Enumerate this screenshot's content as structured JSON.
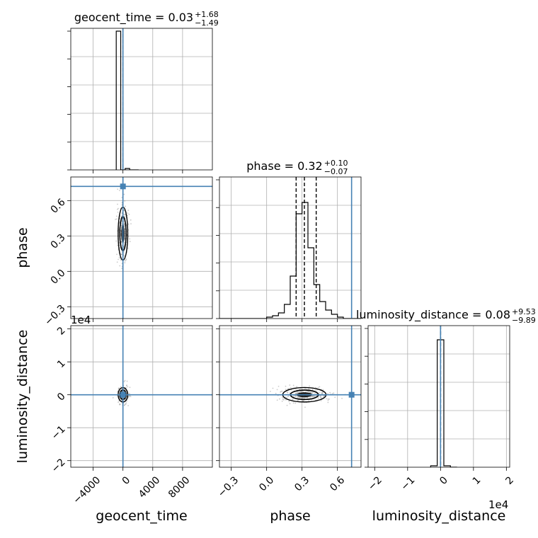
{
  "chart_data": {
    "type": "corner",
    "parameters": [
      {
        "name": "geocent_time",
        "axis_label": "geocent_time",
        "title": {
          "base": "geocent_time = 0.03",
          "plus": "+1.68",
          "minus": "−1.49"
        },
        "range": [
          -7000,
          12000
        ],
        "ticks": [
          {
            "value": -4000,
            "label": "−4000"
          },
          {
            "value": 0,
            "label": "0"
          },
          {
            "value": 4000,
            "label": "4000"
          },
          {
            "value": 8000,
            "label": "8000"
          }
        ],
        "offset_text": "",
        "quantiles": [
          -1.46,
          0.03,
          1.71
        ],
        "injection": 0,
        "hist": {
          "bins": [
            -900,
            -300,
            300,
            900,
            1500,
            2100
          ],
          "counts": [
            0.98,
            0.0,
            0.01,
            0.0,
            0.0
          ]
        },
        "ymax": 1.0
      },
      {
        "name": "phase",
        "axis_label": "phase",
        "title": {
          "base": "phase = 0.32",
          "plus": "+0.10",
          "minus": "−0.07"
        },
        "range": [
          -0.4,
          0.8
        ],
        "ticks": [
          {
            "value": -0.3,
            "label": "−0.3"
          },
          {
            "value": 0.0,
            "label": "0.0"
          },
          {
            "value": 0.3,
            "label": "0.3"
          },
          {
            "value": 0.6,
            "label": "0.6"
          }
        ],
        "offset_text": "",
        "quantiles": [
          0.25,
          0.32,
          0.42
        ],
        "injection": 0.72,
        "hist": {
          "bins": [
            -0.4,
            -0.35,
            -0.3,
            -0.25,
            -0.2,
            -0.15,
            -0.1,
            -0.05,
            0.0,
            0.05,
            0.1,
            0.15,
            0.2,
            0.25,
            0.3,
            0.35,
            0.4,
            0.45,
            0.5,
            0.55,
            0.6,
            0.65,
            0.7,
            0.75,
            0.8
          ],
          "counts": [
            0,
            0,
            0,
            0,
            0,
            0,
            0,
            0,
            0.01,
            0.02,
            0.04,
            0.1,
            0.3,
            0.74,
            0.82,
            0.5,
            0.24,
            0.12,
            0.06,
            0.03,
            0.01,
            0.0,
            0.0,
            0.0
          ]
        },
        "ymax": 1.0
      },
      {
        "name": "luminosity_distance",
        "axis_label": "luminosity_distance",
        "title": {
          "base": "luminosity_distance = 0.08",
          "plus": "+9.53",
          "minus": "−9.89"
        },
        "range": [
          -22000,
          21000
        ],
        "ticks": [
          {
            "value": -20000,
            "label": "−2"
          },
          {
            "value": -10000,
            "label": "−1"
          },
          {
            "value": 0,
            "label": "0"
          },
          {
            "value": 10000,
            "label": "1"
          },
          {
            "value": 20000,
            "label": "2"
          }
        ],
        "offset_text": "1e4",
        "quantiles": [
          -9.81,
          0.08,
          9.61
        ],
        "injection": 0,
        "hist": {
          "bins": [
            -3000,
            -1000,
            1000,
            3000,
            5000
          ],
          "counts": [
            0.01,
            0.9,
            0.01,
            0.0
          ]
        },
        "ymax": 1.0
      }
    ],
    "offset_texts": {
      "luminosity_distance_y": "1e4",
      "luminosity_distance_x": "1e4"
    },
    "colors": {
      "truth": "#4682b4",
      "hist": "#000000",
      "grid": "#b0b0b0",
      "scatter": "#8c8c8c"
    },
    "grid": true
  }
}
